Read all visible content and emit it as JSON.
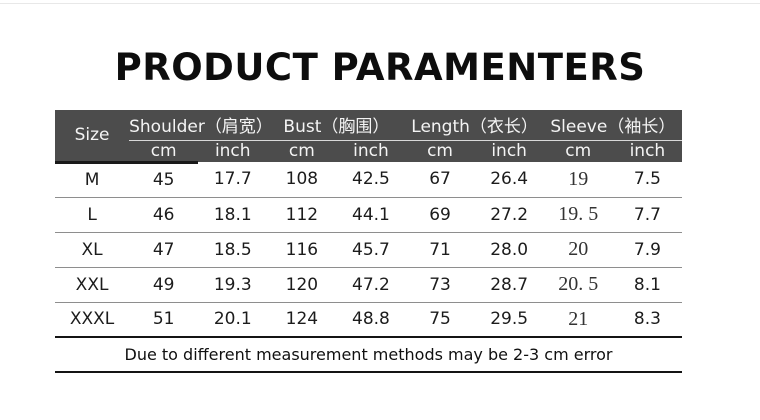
{
  "title": "PRODUCT PARAMENTERS",
  "table": {
    "size_header": "Size",
    "groups": [
      {
        "id": "shoulder",
        "label": "Shoulder（肩宽）"
      },
      {
        "id": "bust",
        "label": "Bust（胸围）"
      },
      {
        "id": "length",
        "label": "Length（衣长）"
      },
      {
        "id": "sleeve",
        "label": "Sleeve（袖长）"
      }
    ],
    "units": {
      "cm": "cm",
      "inch": "inch"
    },
    "rows": [
      {
        "size": "M",
        "shoulder_cm": "45",
        "shoulder_inch": "17.7",
        "bust_cm": "108",
        "bust_inch": "42.5",
        "length_cm": "67",
        "length_inch": "26.4",
        "sleeve_cm": "19",
        "sleeve_inch": "7.5"
      },
      {
        "size": "L",
        "shoulder_cm": "46",
        "shoulder_inch": "18.1",
        "bust_cm": "112",
        "bust_inch": "44.1",
        "length_cm": "69",
        "length_inch": "27.2",
        "sleeve_cm": "19. 5",
        "sleeve_inch": "7.7"
      },
      {
        "size": "XL",
        "shoulder_cm": "47",
        "shoulder_inch": "18.5",
        "bust_cm": "116",
        "bust_inch": "45.7",
        "length_cm": "71",
        "length_inch": "28.0",
        "sleeve_cm": "20",
        "sleeve_inch": "7.9"
      },
      {
        "size": "XXL",
        "shoulder_cm": "49",
        "shoulder_inch": "19.3",
        "bust_cm": "120",
        "bust_inch": "47.2",
        "length_cm": "73",
        "length_inch": "28.7",
        "sleeve_cm": "20. 5",
        "sleeve_inch": "8.1"
      },
      {
        "size": "XXXL",
        "shoulder_cm": "51",
        "shoulder_inch": "20.1",
        "bust_cm": "124",
        "bust_inch": "48.8",
        "length_cm": "75",
        "length_inch": "29.5",
        "sleeve_cm": "21",
        "sleeve_inch": "8.3"
      }
    ],
    "note": "Due to different measurement methods may be 2-3 cm error"
  },
  "colors": {
    "header_bg": "#4c4c4c",
    "header_text": "#f4f4f4",
    "row_divider": "#8e8e8e",
    "strong_divider": "#141414",
    "header_accent_underline": "#191919",
    "title_text": "#0d0d0d"
  }
}
